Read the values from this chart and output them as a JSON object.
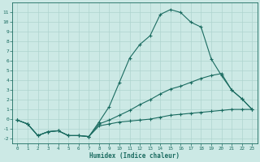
{
  "xlabel": "Humidex (Indice chaleur)",
  "xlim": [
    -0.5,
    23.5
  ],
  "ylim": [
    -2.5,
    12
  ],
  "xticks": [
    0,
    1,
    2,
    3,
    4,
    5,
    6,
    7,
    8,
    9,
    10,
    11,
    12,
    13,
    14,
    15,
    16,
    17,
    18,
    19,
    20,
    21,
    22,
    23
  ],
  "yticks": [
    -2,
    -1,
    0,
    1,
    2,
    3,
    4,
    5,
    6,
    7,
    8,
    9,
    10,
    11
  ],
  "bg_color": "#cce9e5",
  "line_color": "#1a6b60",
  "grid_color": "#aed4cf",
  "line1_x": [
    0,
    1,
    2,
    3,
    4,
    5,
    6,
    7,
    8,
    9,
    10,
    11,
    12,
    13,
    14,
    15,
    16,
    17,
    18,
    19,
    20,
    21,
    22,
    23
  ],
  "line1_y": [
    -0.1,
    -0.5,
    -1.7,
    -1.3,
    -1.2,
    -1.7,
    -1.7,
    -1.8,
    -0.3,
    1.3,
    3.8,
    6.3,
    7.7,
    8.6,
    10.8,
    11.3,
    11.0,
    10.0,
    9.5,
    6.2,
    4.5,
    3.0,
    2.1,
    1.0
  ],
  "line2_x": [
    0,
    1,
    2,
    3,
    4,
    5,
    6,
    7,
    8,
    9,
    10,
    11,
    12,
    13,
    14,
    15,
    16,
    17,
    18,
    19,
    20,
    21,
    22,
    23
  ],
  "line2_y": [
    -0.1,
    -0.5,
    -1.7,
    -1.3,
    -1.2,
    -1.7,
    -1.7,
    -1.8,
    -0.5,
    -0.1,
    0.4,
    0.9,
    1.5,
    2.0,
    2.6,
    3.1,
    3.4,
    3.8,
    4.2,
    4.5,
    4.7,
    3.0,
    2.1,
    1.0
  ],
  "line3_x": [
    0,
    1,
    2,
    3,
    4,
    5,
    6,
    7,
    8,
    9,
    10,
    11,
    12,
    13,
    14,
    15,
    16,
    17,
    18,
    19,
    20,
    21,
    22,
    23
  ],
  "line3_y": [
    -0.1,
    -0.5,
    -1.7,
    -1.3,
    -1.2,
    -1.7,
    -1.7,
    -1.8,
    -0.7,
    -0.5,
    -0.3,
    -0.2,
    -0.1,
    0.0,
    0.2,
    0.4,
    0.5,
    0.6,
    0.7,
    0.8,
    0.9,
    1.0,
    1.0,
    1.0
  ]
}
